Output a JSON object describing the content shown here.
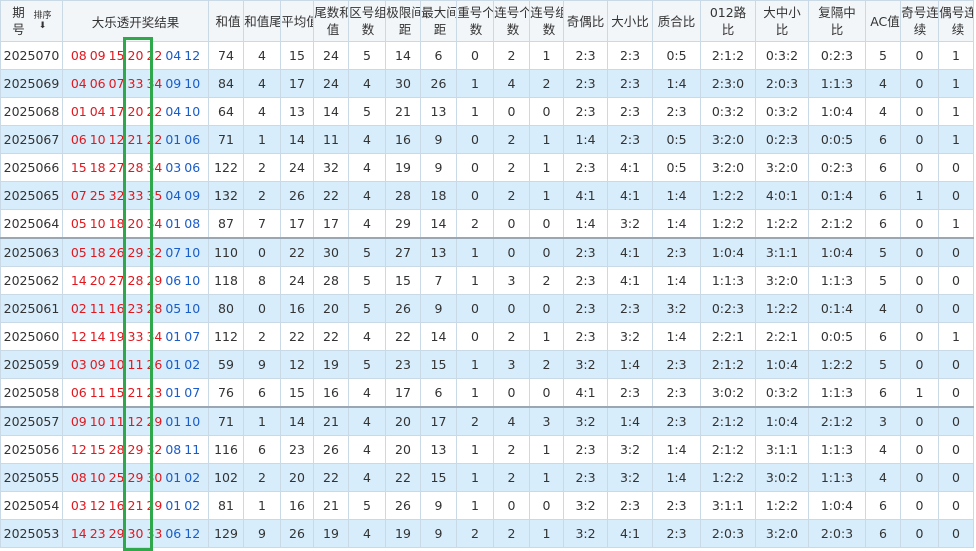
{
  "header": {
    "columns": [
      "期号",
      "大乐透开奖结果",
      "和值",
      "和值尾",
      "平均值",
      "尾数和值",
      "区号组数",
      "极限间距",
      "最大间距",
      "重号个数",
      "连号个数",
      "连号组数",
      "奇偶比",
      "大小比",
      "质合比",
      "012路比",
      "大中小比",
      "复隔中比",
      "AC值",
      "奇号连续",
      "偶号连续"
    ],
    "sort": "排序"
  },
  "rows": [
    {
      "period": "2025070",
      "red": [
        "08",
        "09",
        "15",
        "20",
        "22"
      ],
      "blue": [
        "04",
        "12"
      ],
      "stats": [
        74,
        4,
        15,
        24,
        5,
        14,
        6,
        0,
        2,
        1,
        "2:3",
        "2:3",
        "0:5",
        "2:1:2",
        "0:3:2",
        "0:2:3",
        5,
        0,
        1
      ]
    },
    {
      "period": "2025069",
      "red": [
        "04",
        "06",
        "07",
        "33",
        "34"
      ],
      "blue": [
        "09",
        "10"
      ],
      "stats": [
        84,
        4,
        17,
        24,
        4,
        30,
        26,
        1,
        4,
        2,
        "2:3",
        "2:3",
        "1:4",
        "2:3:0",
        "2:0:3",
        "1:1:3",
        4,
        0,
        1
      ]
    },
    {
      "period": "2025068",
      "red": [
        "01",
        "04",
        "17",
        "20",
        "22"
      ],
      "blue": [
        "04",
        "10"
      ],
      "stats": [
        64,
        4,
        13,
        14,
        5,
        21,
        13,
        1,
        0,
        0,
        "2:3",
        "2:3",
        "2:3",
        "0:3:2",
        "0:3:2",
        "1:0:4",
        4,
        0,
        1
      ]
    },
    {
      "period": "2025067",
      "red": [
        "06",
        "10",
        "12",
        "21",
        "22"
      ],
      "blue": [
        "01",
        "06"
      ],
      "stats": [
        71,
        1,
        14,
        11,
        4,
        16,
        9,
        0,
        2,
        1,
        "1:4",
        "2:3",
        "0:5",
        "3:2:0",
        "0:2:3",
        "0:0:5",
        6,
        0,
        1
      ]
    },
    {
      "period": "2025066",
      "red": [
        "15",
        "18",
        "27",
        "28",
        "34"
      ],
      "blue": [
        "03",
        "06"
      ],
      "stats": [
        122,
        2,
        24,
        32,
        4,
        19,
        9,
        0,
        2,
        1,
        "2:3",
        "4:1",
        "0:5",
        "3:2:0",
        "3:2:0",
        "0:2:3",
        6,
        0,
        0
      ]
    },
    {
      "period": "2025065",
      "red": [
        "07",
        "25",
        "32",
        "33",
        "35"
      ],
      "blue": [
        "04",
        "09"
      ],
      "stats": [
        132,
        2,
        26,
        22,
        4,
        28,
        18,
        0,
        2,
        1,
        "4:1",
        "4:1",
        "1:4",
        "1:2:2",
        "4:0:1",
        "0:1:4",
        6,
        1,
        0
      ]
    },
    {
      "period": "2025064",
      "red": [
        "05",
        "10",
        "18",
        "20",
        "34"
      ],
      "blue": [
        "01",
        "08"
      ],
      "stats": [
        87,
        7,
        17,
        17,
        4,
        29,
        14,
        2,
        0,
        0,
        "1:4",
        "3:2",
        "1:4",
        "1:2:2",
        "1:2:2",
        "2:1:2",
        6,
        0,
        1
      ]
    },
    {
      "period": "2025063",
      "red": [
        "05",
        "18",
        "26",
        "29",
        "32"
      ],
      "blue": [
        "07",
        "10"
      ],
      "stats": [
        110,
        0,
        22,
        30,
        5,
        27,
        13,
        1,
        0,
        0,
        "2:3",
        "4:1",
        "2:3",
        "1:0:4",
        "3:1:1",
        "1:0:4",
        5,
        0,
        0
      ]
    },
    {
      "period": "2025062",
      "red": [
        "14",
        "20",
        "27",
        "28",
        "29"
      ],
      "blue": [
        "06",
        "10"
      ],
      "stats": [
        118,
        8,
        24,
        28,
        5,
        15,
        7,
        1,
        3,
        2,
        "2:3",
        "4:1",
        "1:4",
        "1:1:3",
        "3:2:0",
        "1:1:3",
        5,
        0,
        0
      ]
    },
    {
      "period": "2025061",
      "red": [
        "02",
        "11",
        "16",
        "23",
        "28"
      ],
      "blue": [
        "05",
        "10"
      ],
      "stats": [
        80,
        0,
        16,
        20,
        5,
        26,
        9,
        0,
        0,
        0,
        "2:3",
        "2:3",
        "3:2",
        "0:2:3",
        "1:2:2",
        "0:1:4",
        4,
        0,
        0
      ]
    },
    {
      "period": "2025060",
      "red": [
        "12",
        "14",
        "19",
        "33",
        "34"
      ],
      "blue": [
        "01",
        "07"
      ],
      "stats": [
        112,
        2,
        22,
        22,
        4,
        22,
        14,
        0,
        2,
        1,
        "2:3",
        "3:2",
        "1:4",
        "2:2:1",
        "2:2:1",
        "0:0:5",
        6,
        0,
        1
      ]
    },
    {
      "period": "2025059",
      "red": [
        "03",
        "09",
        "10",
        "11",
        "26"
      ],
      "blue": [
        "01",
        "02"
      ],
      "stats": [
        59,
        9,
        12,
        19,
        5,
        23,
        15,
        1,
        3,
        2,
        "3:2",
        "1:4",
        "2:3",
        "2:1:2",
        "1:0:4",
        "1:2:2",
        5,
        0,
        0
      ]
    },
    {
      "period": "2025058",
      "red": [
        "06",
        "11",
        "15",
        "21",
        "23"
      ],
      "blue": [
        "01",
        "07"
      ],
      "stats": [
        76,
        6,
        15,
        16,
        4,
        17,
        6,
        1,
        0,
        0,
        "4:1",
        "2:3",
        "2:3",
        "3:0:2",
        "0:3:2",
        "1:1:3",
        6,
        1,
        0
      ]
    },
    {
      "period": "2025057",
      "red": [
        "09",
        "10",
        "11",
        "12",
        "29"
      ],
      "blue": [
        "01",
        "10"
      ],
      "stats": [
        71,
        1,
        14,
        21,
        4,
        20,
        17,
        2,
        4,
        3,
        "3:2",
        "1:4",
        "2:3",
        "2:1:2",
        "1:0:4",
        "2:1:2",
        3,
        0,
        0
      ]
    },
    {
      "period": "2025056",
      "red": [
        "12",
        "15",
        "28",
        "29",
        "32"
      ],
      "blue": [
        "08",
        "11"
      ],
      "stats": [
        116,
        6,
        23,
        26,
        4,
        20,
        13,
        1,
        2,
        1,
        "2:3",
        "3:2",
        "1:4",
        "2:1:2",
        "3:1:1",
        "1:1:3",
        4,
        0,
        0
      ]
    },
    {
      "period": "2025055",
      "red": [
        "08",
        "10",
        "25",
        "29",
        "30"
      ],
      "blue": [
        "01",
        "02"
      ],
      "stats": [
        102,
        2,
        20,
        22,
        4,
        22,
        15,
        1,
        2,
        1,
        "2:3",
        "3:2",
        "1:4",
        "1:2:2",
        "3:0:2",
        "1:1:3",
        4,
        0,
        0
      ]
    },
    {
      "period": "2025054",
      "red": [
        "03",
        "12",
        "16",
        "21",
        "29"
      ],
      "blue": [
        "01",
        "02"
      ],
      "stats": [
        81,
        1,
        16,
        21,
        5,
        26,
        9,
        1,
        0,
        0,
        "3:2",
        "2:3",
        "2:3",
        "3:1:1",
        "1:2:2",
        "1:0:4",
        6,
        0,
        0
      ]
    },
    {
      "period": "2025053",
      "red": [
        "14",
        "23",
        "29",
        "30",
        "33"
      ],
      "blue": [
        "06",
        "12"
      ],
      "stats": [
        129,
        9,
        26,
        19,
        4,
        19,
        9,
        2,
        2,
        1,
        "3:2",
        "4:1",
        "2:3",
        "2:0:3",
        "3:2:0",
        "2:0:3",
        6,
        0,
        0
      ]
    }
  ]
}
